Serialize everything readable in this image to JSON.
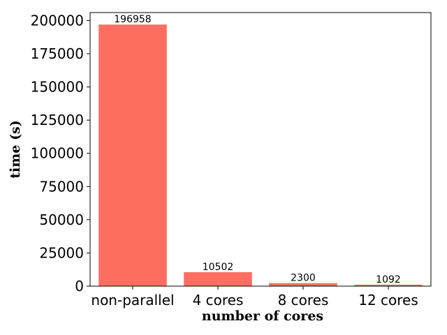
{
  "chart_data": {
    "type": "bar",
    "categories": [
      "non-parallel",
      "4 cores",
      "8 cores",
      "12 cores"
    ],
    "values": [
      196958,
      10502,
      2300,
      1092
    ],
    "data_labels": [
      "196958",
      "10502",
      "2300",
      "1092"
    ],
    "title": "",
    "xlabel": "number of cores",
    "ylabel": "time (s)",
    "ylim": [
      0,
      206000
    ],
    "yticks": [
      0,
      25000,
      50000,
      75000,
      100000,
      125000,
      150000,
      175000,
      200000
    ],
    "ytick_labels": [
      "0",
      "25000",
      "50000",
      "75000",
      "100000",
      "125000",
      "150000",
      "175000",
      "200000"
    ],
    "bar_color": "#ff6f61",
    "grid": false,
    "legend": "none"
  }
}
